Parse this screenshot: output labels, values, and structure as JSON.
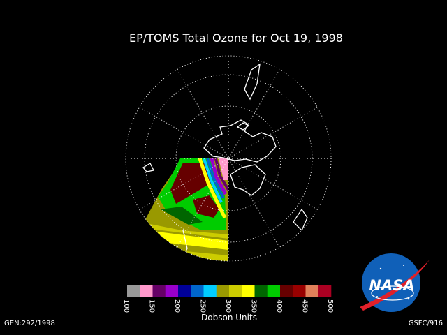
{
  "title": "EP/TOMS Total Ozone for Oct 19, 1998",
  "colorbar": {
    "range": [
      100,
      500
    ],
    "ticks": [
      100,
      150,
      200,
      250,
      300,
      350,
      400,
      450,
      500
    ],
    "colors": [
      "#999999",
      "#ff99cc",
      "#660066",
      "#9900cc",
      "#000099",
      "#0066cc",
      "#00ccff",
      "#999900",
      "#cccc00",
      "#ffff00",
      "#006600",
      "#00cc00",
      "#660000",
      "#990000",
      "#e0805a",
      "#aa0022"
    ],
    "label": "Dobson Units"
  },
  "footer": {
    "left": "GEN:292/1998",
    "right": "GSFC/916"
  },
  "logo": {
    "text": "NASA"
  }
}
